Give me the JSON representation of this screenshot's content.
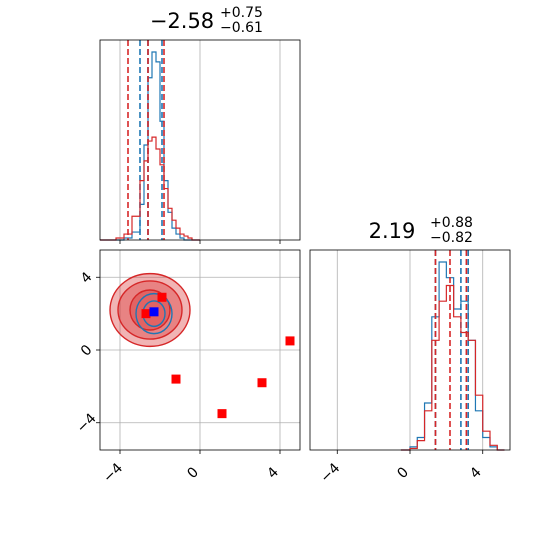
{
  "chart_data": [
    {
      "type": "histogram",
      "panel": "top-left",
      "title": {
        "value": "−2.58",
        "plus": "+0.75",
        "minus": "−0.61"
      },
      "xlim": [
        -5,
        5
      ],
      "xticks": [
        -4,
        0,
        4
      ],
      "grid": true,
      "series": [
        {
          "color": "#1f77b4",
          "bin_edges": [
            -5.0,
            -4.6,
            -4.2,
            -3.8,
            -3.4,
            -3.0,
            -2.8,
            -2.6,
            -2.4,
            -2.2,
            -2.0,
            -1.8,
            -1.6,
            -1.4,
            -1.2,
            -1.0,
            -0.8,
            -0.6,
            -0.4,
            -0.2,
            0.0
          ],
          "counts": [
            0,
            0,
            0,
            1,
            4,
            18,
            48,
            82,
            95,
            90,
            60,
            30,
            14,
            6,
            3,
            1,
            0,
            0,
            0,
            0
          ],
          "quantile_lines": [
            -3.0,
            -2.6,
            -1.9
          ]
        },
        {
          "color": "#d62728",
          "bin_edges": [
            -5.0,
            -4.6,
            -4.2,
            -3.8,
            -3.4,
            -3.0,
            -2.8,
            -2.6,
            -2.4,
            -2.2,
            -2.0,
            -1.8,
            -1.6,
            -1.4,
            -1.2,
            -1.0,
            -0.8,
            -0.6,
            -0.4,
            -0.2,
            0.0
          ],
          "counts": [
            0,
            0,
            1,
            3,
            12,
            30,
            40,
            50,
            52,
            46,
            38,
            26,
            16,
            10,
            6,
            3,
            2,
            1,
            0,
            0
          ],
          "quantile_lines": [
            -3.6,
            -2.6,
            -1.8
          ]
        }
      ]
    },
    {
      "type": "scatter",
      "panel": "bottom-left",
      "xlim": [
        -5,
        5
      ],
      "ylim": [
        -5.5,
        5.5
      ],
      "xticks": [
        -4,
        0,
        4
      ],
      "yticks": [
        -4,
        0,
        4
      ],
      "grid": true,
      "contours": [
        {
          "color": "#d62728",
          "center": [
            -2.5,
            2.2
          ],
          "rx": 2.0,
          "ry": 2.0
        },
        {
          "color": "#d62728",
          "center": [
            -2.5,
            2.2
          ],
          "rx": 1.6,
          "ry": 1.6
        },
        {
          "color": "#d62728",
          "center": [
            -2.5,
            2.2
          ],
          "rx": 1.0,
          "ry": 1.1
        },
        {
          "color": "#1f77b4",
          "center": [
            -2.3,
            2.0
          ],
          "rx": 0.9,
          "ry": 1.1
        },
        {
          "color": "#1f77b4",
          "center": [
            -2.3,
            2.0
          ],
          "rx": 0.55,
          "ry": 0.7
        }
      ],
      "markers": [
        {
          "color": "#ff0000",
          "x": -1.9,
          "y": 2.9
        },
        {
          "color": "#ff0000",
          "x": -2.7,
          "y": 2.0
        },
        {
          "color": "#ff0000",
          "x": -1.2,
          "y": -1.6
        },
        {
          "color": "#ff0000",
          "x": 1.1,
          "y": -3.5
        },
        {
          "color": "#ff0000",
          "x": 3.1,
          "y": -1.8
        },
        {
          "color": "#ff0000",
          "x": 4.5,
          "y": 0.5
        },
        {
          "color": "#0000ff",
          "x": -2.3,
          "y": 2.1
        }
      ]
    },
    {
      "type": "histogram",
      "panel": "bottom-right",
      "title": {
        "value": "2.19",
        "plus": "+0.88",
        "minus": "−0.82"
      },
      "xlim": [
        -5.5,
        5.5
      ],
      "xticks": [
        -4,
        0,
        4
      ],
      "grid": true,
      "series": [
        {
          "color": "#1f77b4",
          "bin_edges": [
            -0.5,
            0.0,
            0.4,
            0.8,
            1.2,
            1.6,
            2.0,
            2.4,
            2.8,
            3.2,
            3.6,
            4.0,
            4.4,
            4.8,
            5.2
          ],
          "counts": [
            0,
            2,
            8,
            30,
            85,
            120,
            110,
            90,
            95,
            70,
            25,
            8,
            2,
            0
          ],
          "quantile_lines": [
            1.4,
            2.8,
            3.2
          ]
        },
        {
          "color": "#d62728",
          "bin_edges": [
            -0.5,
            0.0,
            0.4,
            0.8,
            1.2,
            1.6,
            2.0,
            2.4,
            2.8,
            3.2,
            3.6,
            4.0,
            4.4,
            4.8,
            5.2
          ],
          "counts": [
            0,
            1,
            6,
            25,
            70,
            95,
            105,
            85,
            75,
            70,
            35,
            12,
            3,
            0
          ],
          "quantile_lines": [
            1.4,
            2.2,
            3.1
          ]
        }
      ]
    }
  ]
}
